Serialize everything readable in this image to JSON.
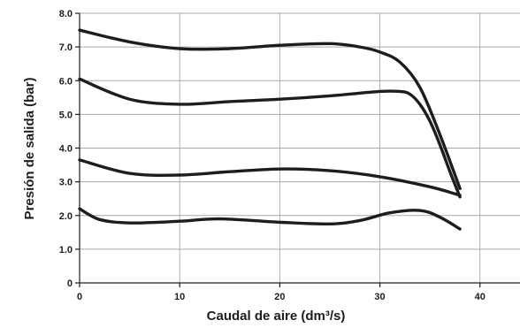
{
  "chart_data": {
    "type": "line",
    "title": "",
    "xlabel": "Caudal de aire (dm³/s)",
    "ylabel": "Presión de salida (bar)",
    "xlim": [
      0,
      44
    ],
    "ylim": [
      0,
      8
    ],
    "x_ticks": [
      "0",
      "10",
      "20",
      "30",
      "40"
    ],
    "y_ticks": [
      "0",
      "1.0",
      "2.0",
      "3.0",
      "4.0",
      "5.0",
      "6.0",
      "7.0",
      "8.0"
    ],
    "grid": true,
    "legend": "none",
    "line_color": "#1d1d1b",
    "grid_color": "#a8a8a8",
    "series": [
      {
        "x": [
          0,
          5,
          10,
          15,
          20,
          25,
          28,
          30,
          32,
          34,
          36,
          38
        ],
        "y": [
          7.5,
          7.15,
          6.95,
          6.95,
          7.05,
          7.1,
          7.0,
          6.85,
          6.55,
          5.8,
          4.4,
          2.8
        ]
      },
      {
        "x": [
          0,
          5,
          10,
          15,
          20,
          25,
          30,
          32,
          33,
          34,
          35,
          36,
          37,
          38
        ],
        "y": [
          6.05,
          5.45,
          5.3,
          5.38,
          5.45,
          5.55,
          5.68,
          5.68,
          5.6,
          5.3,
          4.8,
          4.1,
          3.3,
          2.55
        ]
      },
      {
        "x": [
          0,
          5,
          10,
          15,
          20,
          25,
          30,
          35,
          38
        ],
        "y": [
          3.65,
          3.25,
          3.2,
          3.3,
          3.38,
          3.33,
          3.15,
          2.85,
          2.6
        ]
      },
      {
        "x": [
          0,
          2,
          5,
          10,
          14,
          20,
          25,
          28,
          31,
          34,
          36,
          38
        ],
        "y": [
          2.2,
          1.88,
          1.78,
          1.83,
          1.9,
          1.8,
          1.75,
          1.85,
          2.08,
          2.15,
          1.95,
          1.6
        ]
      }
    ]
  }
}
